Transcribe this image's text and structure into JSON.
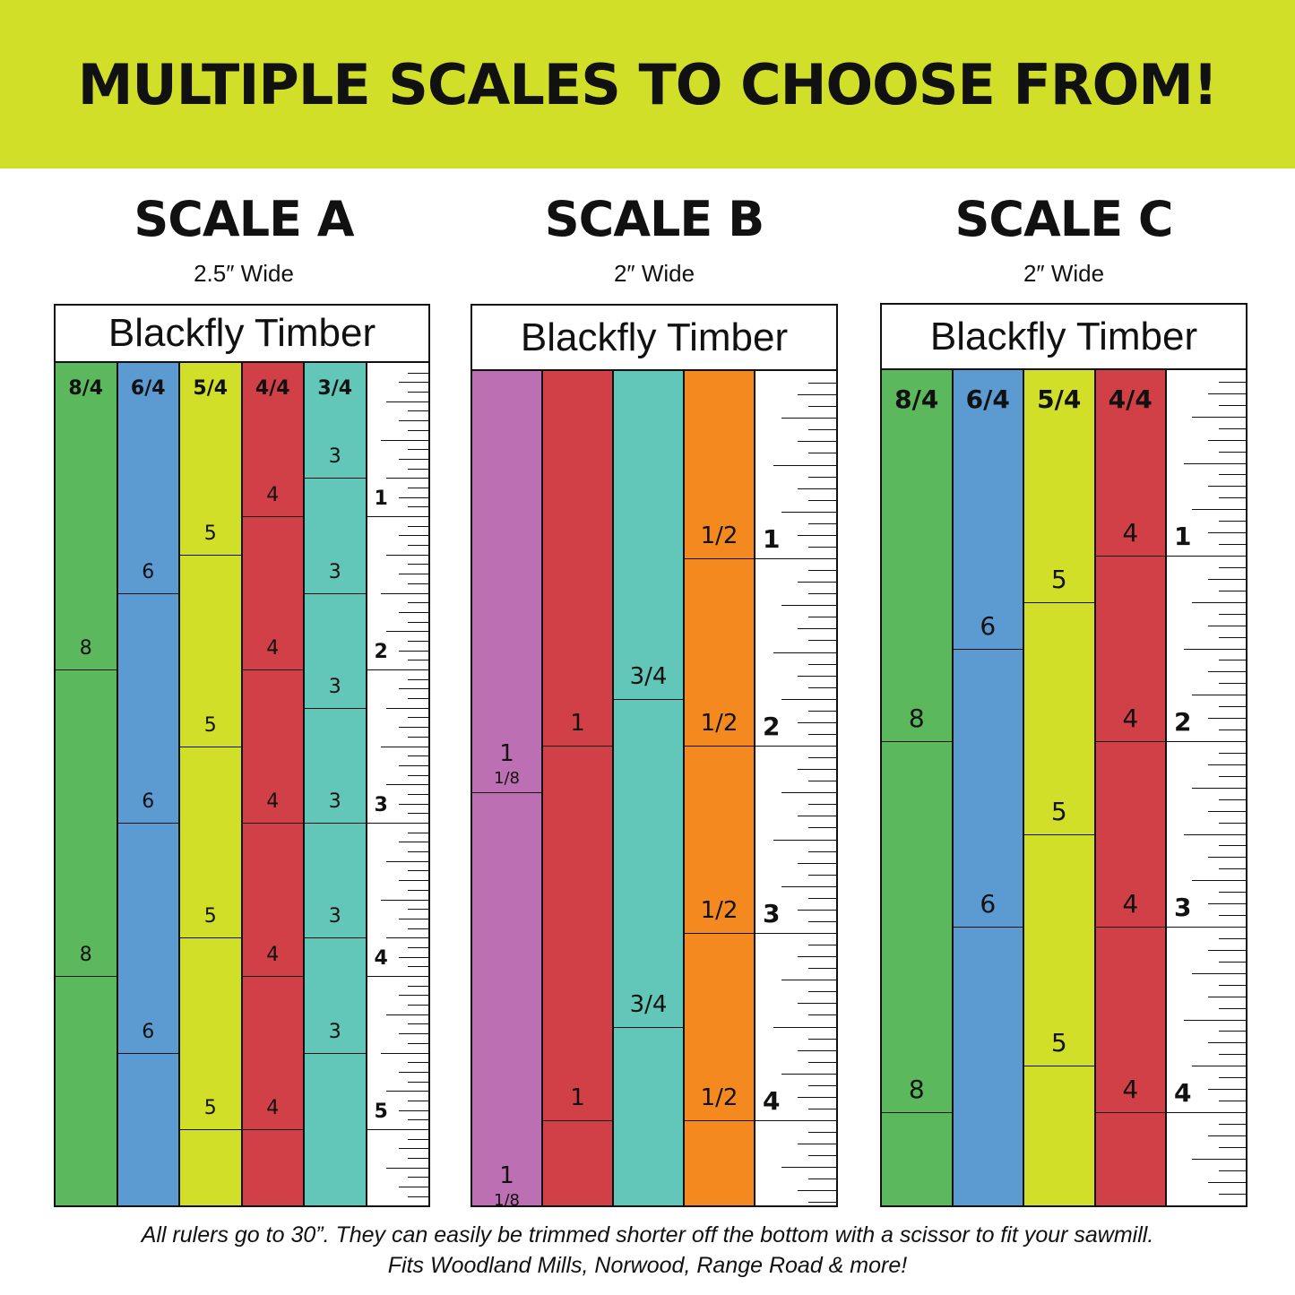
{
  "banner": {
    "title": "MULTIPLE SCALES TO CHOOSE FROM!"
  },
  "scales": [
    {
      "title": "SCALE A",
      "width_label": "2.5″ Wide",
      "brand": "Blackfly Timber",
      "columns": [
        {
          "label": "8/4",
          "color": "#5cb85c",
          "thickness": 8,
          "marks": [
            "8",
            "8"
          ]
        },
        {
          "label": "6/4",
          "color": "#5b9bd1",
          "thickness": 6,
          "marks": [
            "6",
            "6",
            "6"
          ]
        },
        {
          "label": "5/4",
          "color": "#d2df28",
          "thickness": 5,
          "marks": [
            "5",
            "5",
            "5",
            "5"
          ]
        },
        {
          "label": "4/4",
          "color": "#d14047",
          "thickness": 4,
          "marks": [
            "4",
            "4",
            "4",
            "4",
            "4"
          ]
        },
        {
          "label": "3/4",
          "color": "#62c6b8",
          "thickness": 3,
          "marks": [
            "3",
            "3",
            "3",
            "3",
            "3",
            "3"
          ]
        }
      ],
      "inches": [
        "1",
        "2",
        "3",
        "4",
        "5"
      ]
    },
    {
      "title": "SCALE B",
      "width_label": "2″ Wide",
      "brand": "Blackfly Timber",
      "columns": [
        {
          "label": "",
          "color": "#bd6fb3",
          "thickness": 9,
          "marks": [
            "1",
            "1",
            "1"
          ],
          "fractions": [
            "1/8",
            "1/8",
            "1/8"
          ]
        },
        {
          "label": "",
          "color": "#d14047",
          "thickness": 8,
          "marks": [
            "1",
            "1",
            "1",
            "1"
          ]
        },
        {
          "label": "",
          "color": "#62c6b8",
          "thickness": 7,
          "marks": [
            "3/4",
            "3/4",
            "3/4",
            "3/4",
            "3/4"
          ]
        },
        {
          "label": "",
          "color": "#f4891f",
          "thickness": 4,
          "marks": [
            "1/2",
            "1/2",
            "1/2",
            "1/2",
            "1/2",
            "1/2",
            "1/2"
          ]
        }
      ],
      "inches": [
        "1",
        "2",
        "3",
        "4"
      ]
    },
    {
      "title": "SCALE C",
      "width_label": "2″ Wide",
      "brand": "Blackfly Timber",
      "columns": [
        {
          "label": "8/4",
          "color": "#5cb85c",
          "thickness": 8,
          "marks": [
            "8",
            "8"
          ]
        },
        {
          "label": "6/4",
          "color": "#5b9bd1",
          "thickness": 6,
          "marks": [
            "6",
            "6"
          ]
        },
        {
          "label": "5/4",
          "color": "#d2df28",
          "thickness": 5,
          "marks": [
            "5",
            "5",
            "5"
          ]
        },
        {
          "label": "4/4",
          "color": "#d14047",
          "thickness": 4,
          "marks": [
            "4",
            "4",
            "4",
            "4"
          ]
        }
      ],
      "inches": [
        "1",
        "2",
        "3",
        "4"
      ]
    }
  ],
  "footer": {
    "line1": "All rulers go to 30”. They can easily be trimmed shorter off the bottom with a scissor to fit your sawmill.",
    "line2": "Fits Woodland Mills, Norwood, Range Road & more!"
  }
}
